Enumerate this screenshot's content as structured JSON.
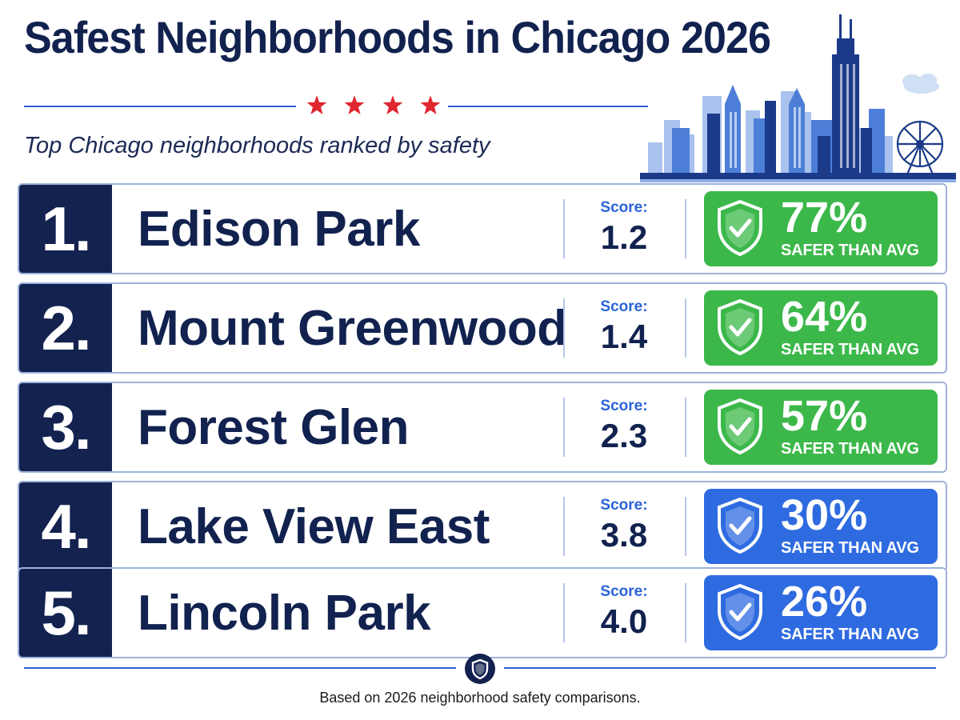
{
  "header": {
    "title": "Safest Neighborhoods in Chicago 2026",
    "subtitle": "Top Chicago neighborhoods ranked by safety"
  },
  "rankings": [
    {
      "rank": "1.",
      "name": "Edison Park",
      "score_label": "Score:",
      "score": "1.2",
      "percent": "77%",
      "comparison": "SAFER THAN AVG",
      "badge_color": "green"
    },
    {
      "rank": "2.",
      "name": "Mount Greenwood",
      "score_label": "Score:",
      "score": "1.4",
      "percent": "64%",
      "comparison": "SAFER THAN AVG",
      "badge_color": "green"
    },
    {
      "rank": "3.",
      "name": "Forest Glen",
      "score_label": "Score:",
      "score": "2.3",
      "percent": "57%",
      "comparison": "SAFER THAN AVG",
      "badge_color": "green"
    },
    {
      "rank": "4.",
      "name": "Lake View East",
      "score_label": "Score:",
      "score": "3.8",
      "percent": "30%",
      "comparison": "SAFER THAN AVG",
      "badge_color": "blue"
    },
    {
      "rank": "5.",
      "name": "Lincoln Park",
      "score_label": "Score:",
      "score": "4.0",
      "percent": "26%",
      "comparison": "SAFER THAN AVG",
      "badge_color": "blue"
    }
  ],
  "footer": {
    "note": "Based on 2026 neighborhood safety comparisons."
  },
  "colors": {
    "navy": "#13224f",
    "green": "#3cb84a",
    "blue": "#2f6be0",
    "star_red": "#e0262f",
    "accent_blue": "#2a63d8"
  },
  "icons": {
    "stars": "red-star-icon",
    "badge": "shield-check-icon",
    "footer": "shield-icon",
    "skyline": "chicago-skyline-illustration"
  }
}
